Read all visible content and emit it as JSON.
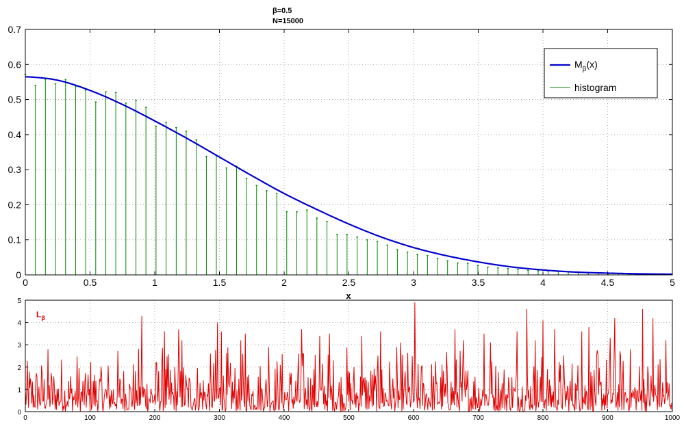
{
  "chart_data": [
    {
      "type": "line",
      "title": [
        "β=0.5",
        "N=15000"
      ],
      "xlabel": "x",
      "ylabel": "",
      "xlim": [
        0,
        5
      ],
      "ylim": [
        0,
        0.7
      ],
      "xticks": [
        "0",
        "0.5",
        "1",
        "1.5",
        "2",
        "2.5",
        "3",
        "3.5",
        "4",
        "4.5",
        "5"
      ],
      "yticks": [
        "0",
        "0.1",
        "0.2",
        "0.3",
        "0.4",
        "0.5",
        "0.6",
        "0.7"
      ],
      "grid": true,
      "legend": {
        "placement": "top-right",
        "entries": [
          {
            "name": "Mβ(x)",
            "main": "M",
            "sub": "β",
            "suffix": "(x)",
            "color": "#0000cc"
          },
          {
            "name": "histogram",
            "main": "histogram",
            "sub": "",
            "suffix": "",
            "color": "#008800"
          }
        ]
      },
      "series": [
        {
          "name": "Mβ(x)",
          "style": "line",
          "color": "#0000cc",
          "x": [
            0,
            0.25,
            0.5,
            0.75,
            1,
            1.25,
            1.5,
            1.75,
            2,
            2.25,
            2.5,
            2.75,
            3,
            3.25,
            3.5,
            3.75,
            4,
            4.25,
            4.5,
            4.75,
            5
          ],
          "y": [
            0.565,
            0.555,
            0.526,
            0.486,
            0.439,
            0.389,
            0.336,
            0.283,
            0.232,
            0.187,
            0.145,
            0.108,
            0.078,
            0.055,
            0.037,
            0.023,
            0.014,
            0.008,
            0.005,
            0.003,
            0.002
          ]
        },
        {
          "name": "histogram",
          "style": "stem",
          "color": "#008800",
          "x": [
            0.0,
            0.078,
            0.155,
            0.233,
            0.311,
            0.389,
            0.466,
            0.544,
            0.622,
            0.699,
            0.777,
            0.855,
            0.932,
            1.01,
            1.088,
            1.166,
            1.243,
            1.321,
            1.399,
            1.476,
            1.554,
            1.632,
            1.709,
            1.787,
            1.865,
            1.943,
            2.02,
            2.098,
            2.176,
            2.253,
            2.331,
            2.409,
            2.486,
            2.564,
            2.642,
            2.72,
            2.797,
            2.875,
            2.953,
            3.03,
            3.108,
            3.186,
            3.263,
            3.341,
            3.419,
            3.497,
            3.574,
            3.652,
            3.73,
            3.807,
            3.885,
            3.963,
            4.04,
            4.118,
            4.196,
            4.273,
            4.351,
            4.429,
            4.507,
            4.584,
            4.662,
            4.74,
            4.817,
            4.895,
            4.973
          ],
          "y": [
            0.572,
            0.54,
            0.558,
            0.545,
            0.557,
            0.537,
            0.527,
            0.493,
            0.522,
            0.52,
            0.49,
            0.498,
            0.478,
            0.424,
            0.435,
            0.42,
            0.41,
            0.385,
            0.338,
            0.34,
            0.305,
            0.31,
            0.275,
            0.255,
            0.24,
            0.232,
            0.18,
            0.18,
            0.185,
            0.162,
            0.152,
            0.115,
            0.115,
            0.108,
            0.1,
            0.095,
            0.085,
            0.072,
            0.065,
            0.058,
            0.055,
            0.047,
            0.04,
            0.034,
            0.033,
            0.027,
            0.022,
            0.02,
            0.018,
            0.016,
            0.013,
            0.012,
            0.011,
            0.01,
            0.008,
            0.007,
            0.006,
            0.005,
            0.005,
            0.004,
            0.004,
            0.003,
            0.003,
            0.002,
            0.002
          ]
        }
      ]
    },
    {
      "type": "line",
      "title": "",
      "xlabel": "",
      "ylabel": "",
      "xlim": [
        0,
        1000
      ],
      "ylim": [
        0,
        5
      ],
      "xticks": [
        "0",
        "100",
        "200",
        "300",
        "400",
        "500",
        "600",
        "700",
        "800",
        "900",
        "1000"
      ],
      "yticks": [
        "0",
        "1",
        "2",
        "3",
        "4",
        "5"
      ],
      "grid": true,
      "series": [
        {
          "name": "Lβ",
          "label_main": "L",
          "label_sub": "β",
          "color": "#e00000",
          "n_points": 1000,
          "mean": 1.1,
          "peaks": [
            [
              180,
              4.3
            ],
            [
              215,
              3.6
            ],
            [
              237,
              3.7
            ],
            [
              242,
              3.2
            ],
            [
              297,
              4.0
            ],
            [
              303,
              3.6
            ],
            [
              333,
              3.2
            ],
            [
              340,
              3.5
            ],
            [
              376,
              2.9
            ],
            [
              427,
              3.7
            ],
            [
              455,
              3.4
            ],
            [
              470,
              3.5
            ],
            [
              520,
              3.4
            ],
            [
              549,
              3.6
            ],
            [
              602,
              4.9
            ],
            [
              664,
              3.7
            ],
            [
              677,
              3.2
            ],
            [
              709,
              3.5
            ],
            [
              719,
              3.1
            ],
            [
              760,
              3.6
            ],
            [
              775,
              4.6
            ],
            [
              788,
              3.2
            ],
            [
              800,
              4.1
            ],
            [
              818,
              3.7
            ],
            [
              860,
              3.6
            ],
            [
              871,
              3.8
            ],
            [
              904,
              3.3
            ],
            [
              911,
              4.2
            ],
            [
              954,
              4.6
            ],
            [
              970,
              4.2
            ],
            [
              990,
              3.2
            ]
          ]
        }
      ]
    }
  ]
}
